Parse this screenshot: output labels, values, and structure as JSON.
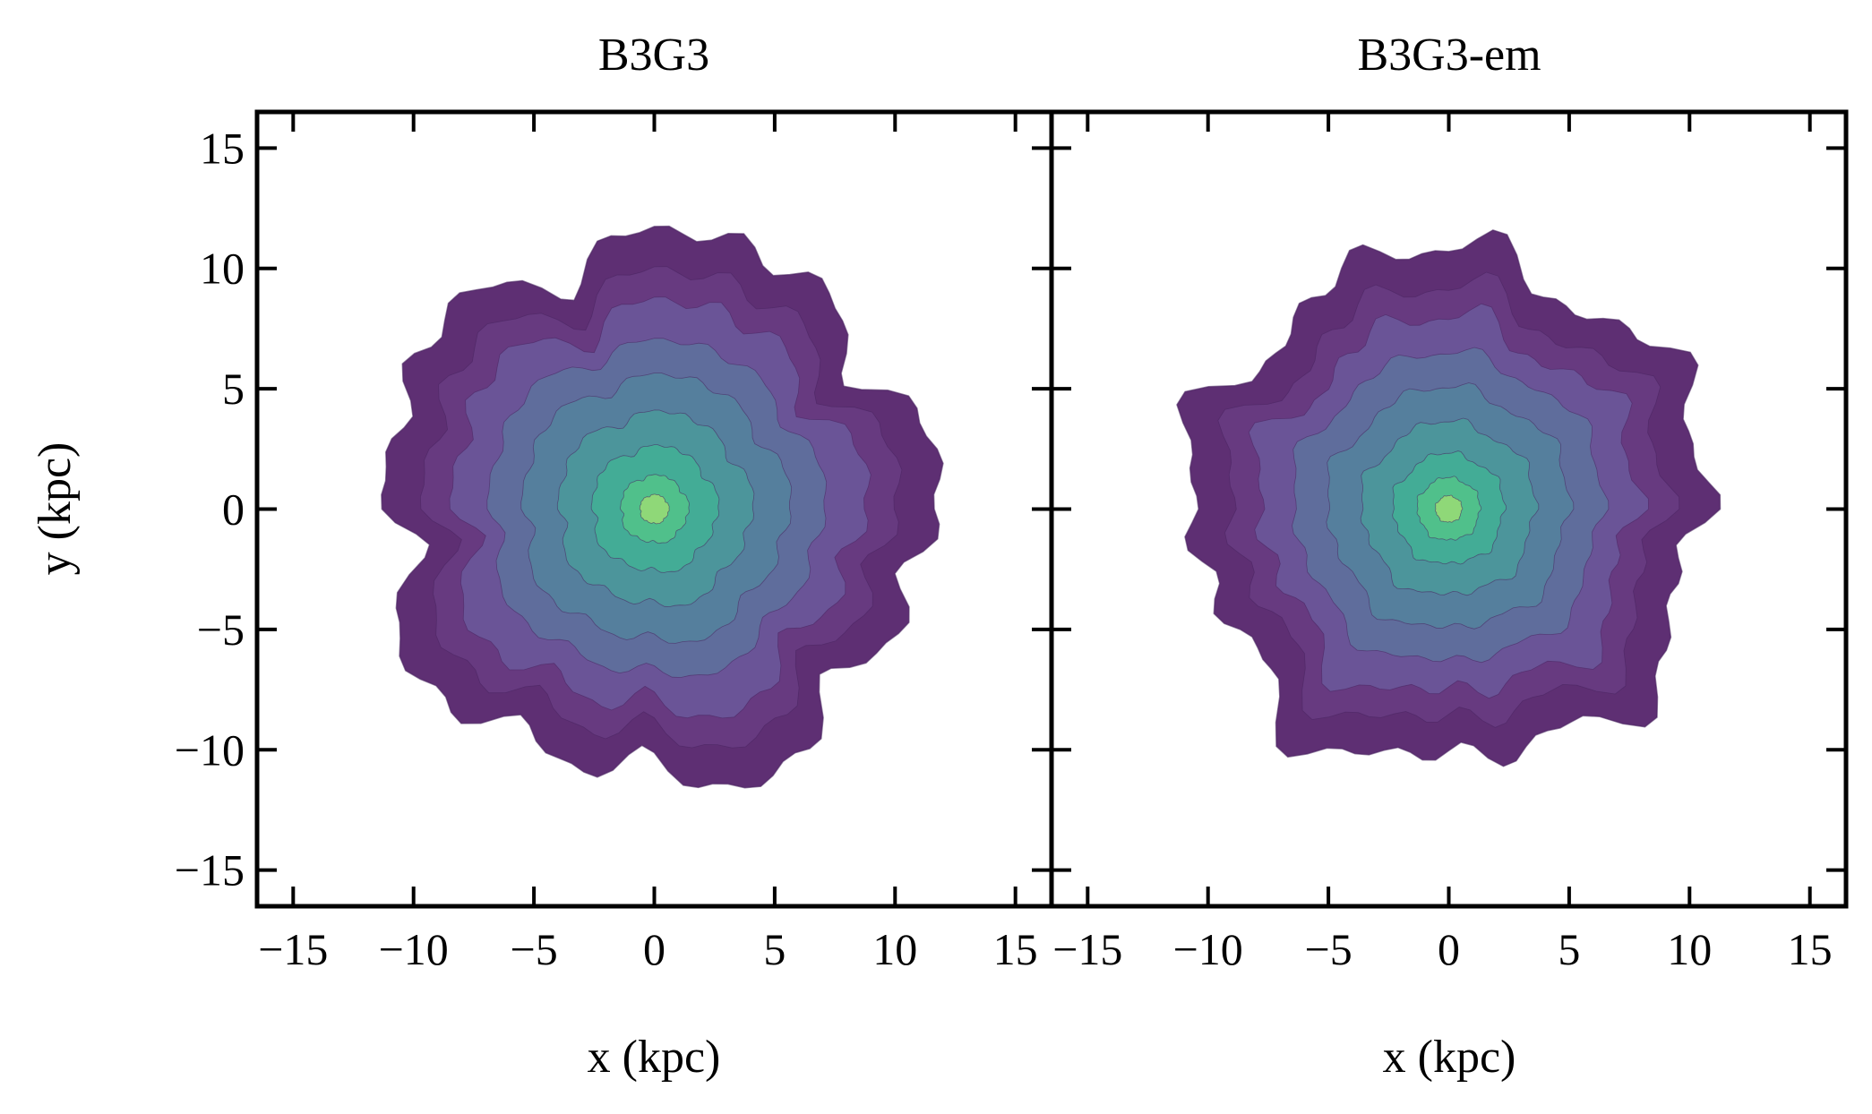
{
  "chart_data": [
    {
      "type": "contour",
      "title": "B3G3",
      "xlabel": "x (kpc)",
      "ylabel": "y (kpc)",
      "xlim": [
        -16.5,
        16.5
      ],
      "ylim": [
        -16.5,
        16.5
      ],
      "xticks": [
        -15,
        -10,
        -5,
        0,
        5,
        10,
        15
      ],
      "yticks": [
        -15,
        -10,
        -5,
        0,
        5,
        10,
        15
      ],
      "xtick_labels": [
        "−15",
        "−10",
        "−5",
        "0",
        "5",
        "10",
        "15"
      ],
      "ytick_labels": [
        "−15",
        "−10",
        "−5",
        "0",
        "5",
        "10",
        "15"
      ],
      "center": [
        0,
        0
      ],
      "contour_levels": [
        {
          "radius_kpc": 11.2,
          "color": "#5e2f73"
        },
        {
          "radius_kpc": 9.6,
          "color": "#673a80"
        },
        {
          "radius_kpc": 8.4,
          "color": "#6a5497"
        },
        {
          "radius_kpc": 6.9,
          "color": "#5f6d9c"
        },
        {
          "radius_kpc": 5.5,
          "color": "#557f9d"
        },
        {
          "radius_kpc": 4.0,
          "color": "#4c959b"
        },
        {
          "radius_kpc": 2.6,
          "color": "#43ac96"
        },
        {
          "radius_kpc": 1.4,
          "color": "#50c08b"
        },
        {
          "radius_kpc": 0.6,
          "color": "#8fd878"
        }
      ]
    },
    {
      "type": "contour",
      "title": "B3G3-em",
      "xlabel": "x (kpc)",
      "ylabel": "",
      "xlim": [
        -16.5,
        16.5
      ],
      "ylim": [
        -16.5,
        16.5
      ],
      "xticks": [
        -15,
        -10,
        -5,
        0,
        5,
        10,
        15
      ],
      "yticks": [
        -15,
        -10,
        -5,
        0,
        5,
        10,
        15
      ],
      "xtick_labels": [
        "−15",
        "−10",
        "−5",
        "0",
        "5",
        "10",
        "15"
      ],
      "ytick_labels": [],
      "center": [
        0,
        0
      ],
      "contour_levels": [
        {
          "radius_kpc": 10.6,
          "color": "#5e2f73"
        },
        {
          "radius_kpc": 9.0,
          "color": "#673a80"
        },
        {
          "radius_kpc": 7.8,
          "color": "#6a5497"
        },
        {
          "radius_kpc": 6.4,
          "color": "#5f6d9c"
        },
        {
          "radius_kpc": 5.0,
          "color": "#557f9d"
        },
        {
          "radius_kpc": 3.6,
          "color": "#4c959b"
        },
        {
          "radius_kpc": 2.3,
          "color": "#43ac96"
        },
        {
          "radius_kpc": 1.3,
          "color": "#50c08b"
        },
        {
          "radius_kpc": 0.55,
          "color": "#8fd878"
        }
      ]
    }
  ]
}
